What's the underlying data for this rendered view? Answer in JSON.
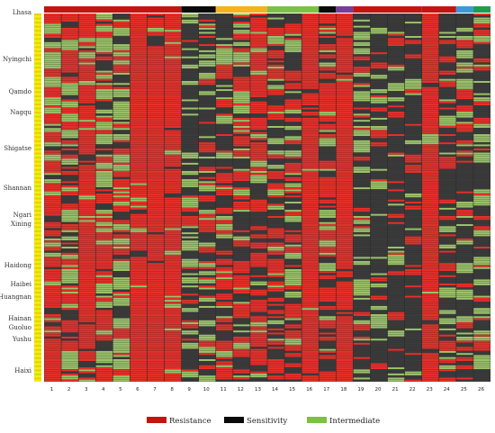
{
  "chart_data": {
    "type": "heatmap",
    "title": "",
    "xlabel": "",
    "ylabel": "",
    "columns": [
      "1",
      "2",
      "3",
      "4",
      "5",
      "6",
      "7",
      "8",
      "9",
      "10",
      "11",
      "12",
      "13",
      "14",
      "15",
      "16",
      "17",
      "18",
      "19",
      "20",
      "21",
      "22",
      "23",
      "24",
      "25",
      "26"
    ],
    "column_groups": [
      {
        "from": 1,
        "to": 8,
        "color": "#c4140f"
      },
      {
        "from": 9,
        "to": 10,
        "color": "#0a0a0a"
      },
      {
        "from": 11,
        "to": 13,
        "color": "#f6b21a"
      },
      {
        "from": 14,
        "to": 16,
        "color": "#7cc142"
      },
      {
        "from": 17,
        "to": 17,
        "color": "#0a0a0a"
      },
      {
        "from": 18,
        "to": 18,
        "color": "#7a3c9c"
      },
      {
        "from": 19,
        "to": 22,
        "color": "#c4140f"
      },
      {
        "from": 23,
        "to": 24,
        "color": "#c4140f"
      },
      {
        "from": 25,
        "to": 25,
        "color": "#3a9ad9"
      },
      {
        "from": 26,
        "to": 26,
        "color": "#1e9e4a"
      }
    ],
    "regions": [
      "Lhasa",
      "Nyingchi",
      "Qamdo",
      "Nagqu",
      "Shigatse",
      "Shannan",
      "Ngari",
      "Xining",
      "Haidong",
      "Haibei",
      "Huangnan",
      "Hainan",
      "Guoluo",
      "Yushu",
      "Haixi"
    ],
    "row_count": 180,
    "column_resistance_rate": [
      0.6,
      0.42,
      0.78,
      0.45,
      0.32,
      0.95,
      0.95,
      0.9,
      0.18,
      0.3,
      0.35,
      0.4,
      0.55,
      0.4,
      0.35,
      0.98,
      0.5,
      0.98,
      0.12,
      0.1,
      0.25,
      0.12,
      0.97,
      0.22,
      0.2,
      0.22
    ],
    "column_intermediate_rate": [
      0.25,
      0.4,
      0.1,
      0.35,
      0.5,
      0.02,
      0.02,
      0.05,
      0.25,
      0.25,
      0.2,
      0.25,
      0.15,
      0.2,
      0.25,
      0.01,
      0.15,
      0.01,
      0.3,
      0.1,
      0.12,
      0.08,
      0.02,
      0.2,
      0.2,
      0.25
    ],
    "legend": [
      {
        "label": "Resistance",
        "color": "#c4140f"
      },
      {
        "label": "Sensitivity",
        "color": "#0a0a0a"
      },
      {
        "label": "Intermediate",
        "color": "#7cc142"
      }
    ],
    "cell_colors": {
      "resistance": "#e8302a",
      "sensitivity": "#3b3b3b",
      "intermediate": "#9cc46a",
      "grid": "#2a2a2a",
      "region_strip": "#f2ee14",
      "region_strip_alt": "#e3d400"
    }
  }
}
